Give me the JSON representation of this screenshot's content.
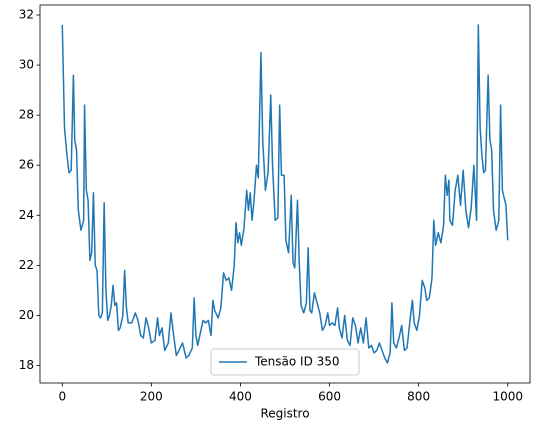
{
  "chart_data": {
    "type": "line",
    "xlabel": "Registro",
    "x": [
      0,
      5,
      10,
      15,
      20,
      25,
      28,
      32,
      36,
      42,
      48,
      50,
      54,
      58,
      62,
      66,
      70,
      74,
      78,
      82,
      86,
      90,
      94,
      98,
      102,
      106,
      110,
      114,
      118,
      122,
      126,
      130,
      136,
      140,
      144,
      148,
      156,
      164,
      170,
      176,
      182,
      188,
      194,
      200,
      208,
      214,
      218,
      224,
      230,
      238,
      244,
      250,
      256,
      262,
      270,
      278,
      284,
      292,
      296,
      300,
      304,
      310,
      316,
      322,
      328,
      334,
      338,
      342,
      350,
      356,
      362,
      368,
      374,
      380,
      386,
      390,
      394,
      398,
      402,
      408,
      414,
      418,
      422,
      426,
      430,
      436,
      440,
      446,
      450,
      456,
      462,
      468,
      472,
      478,
      484,
      488,
      492,
      498,
      502,
      508,
      514,
      518,
      522,
      528,
      532,
      536,
      542,
      548,
      552,
      556,
      560,
      566,
      572,
      578,
      584,
      590,
      596,
      600,
      606,
      612,
      618,
      622,
      628,
      634,
      640,
      646,
      652,
      658,
      664,
      670,
      676,
      682,
      688,
      694,
      700,
      706,
      712,
      718,
      724,
      730,
      736,
      740,
      744,
      750,
      756,
      762,
      768,
      774,
      780,
      786,
      790,
      796,
      802,
      808,
      814,
      818,
      824,
      830,
      834,
      838,
      844,
      850,
      856,
      860,
      864,
      868,
      870,
      876,
      882,
      888,
      894,
      900,
      906,
      912,
      918,
      924,
      930,
      934,
      938,
      942,
      946,
      950,
      956,
      960,
      964,
      968,
      974,
      980,
      984,
      988,
      992,
      996,
      1000
    ],
    "series": [
      {
        "name": "Tensão ID 350",
        "color": "#1f77b4",
        "values": [
          31.6,
          27.5,
          26.5,
          25.7,
          25.8,
          29.6,
          27,
          26.6,
          24.2,
          23.4,
          23.8,
          28.4,
          25,
          24.6,
          22.2,
          22.5,
          24.9,
          22,
          21.8,
          20,
          19.9,
          20.1,
          24.5,
          21,
          19.8,
          20,
          20.4,
          21.2,
          20.4,
          20.5,
          19.4,
          19.5,
          20,
          21.8,
          20.3,
          19.7,
          19.7,
          20.1,
          19.8,
          19.2,
          19.1,
          19.9,
          19.5,
          18.9,
          19,
          19.9,
          19.2,
          19.5,
          18.6,
          18.9,
          20.1,
          19.2,
          18.4,
          18.6,
          18.9,
          18.3,
          18.4,
          18.7,
          20.7,
          19.2,
          18.8,
          19.3,
          19.8,
          19.7,
          19.8,
          19.2,
          20.6,
          20.2,
          19.9,
          20.3,
          21.7,
          21.4,
          21.5,
          21,
          22,
          23.7,
          22.9,
          23.3,
          22.8,
          23.5,
          25,
          24.2,
          24.9,
          23.8,
          24.5,
          26,
          25.5,
          30.5,
          27,
          25,
          25.7,
          28.8,
          26,
          23.8,
          23.9,
          28.4,
          25.6,
          25.6,
          23,
          22.5,
          24.8,
          22.1,
          21.9,
          24.6,
          22.1,
          20.4,
          20.1,
          20.5,
          22.7,
          20.2,
          20.1,
          20.9,
          20.5,
          20.1,
          19.4,
          19.6,
          20.1,
          19.6,
          19.7,
          19.6,
          20.3,
          19.5,
          19.1,
          20,
          19,
          18.8,
          19.9,
          19.6,
          18.9,
          19.5,
          18.9,
          19.9,
          18.7,
          18.8,
          18.5,
          18.6,
          18.9,
          18.6,
          18.3,
          18.1,
          18.5,
          20.5,
          18.9,
          18.7,
          19.1,
          19.6,
          18.6,
          18.7,
          19.7,
          20.6,
          19.7,
          19.4,
          20,
          21.4,
          21.1,
          20.6,
          20.7,
          21.5,
          23.8,
          22.8,
          23.3,
          22.9,
          23.6,
          25.6,
          24.8,
          25.4,
          23.8,
          23.6,
          25,
          25.6,
          24.4,
          25.8,
          24.2,
          23.5,
          24.3,
          26,
          23.8,
          31.6,
          27.5,
          26.4,
          25.7,
          25.8,
          29.6,
          27,
          26.6,
          24.2,
          23.4,
          23.8,
          28.4,
          25,
          24.7,
          24.4,
          23
        ]
      }
    ],
    "xlim": [
      -50,
      1050
    ],
    "xticks": [
      0,
      200,
      400,
      600,
      800,
      1000
    ],
    "ylim": [
      17.3,
      32.4
    ],
    "yticks": [
      18,
      20,
      22,
      24,
      26,
      28,
      30,
      32
    ],
    "legend": "lower center"
  }
}
